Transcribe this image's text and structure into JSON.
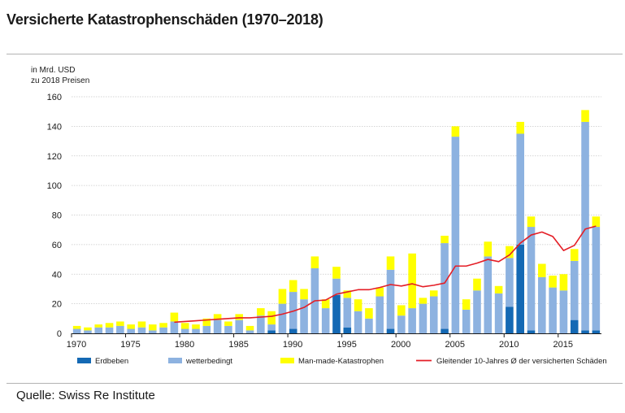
{
  "title": "Versicherte Katastrophenschäden (1970–2018)",
  "unit_label": [
    "in Mrd. USD",
    "zu 2018 Preisen"
  ],
  "source": "Quelle: Swiss Re Institute",
  "colors": {
    "earthquake": "#1469b4",
    "weather": "#8db2e0",
    "manmade": "#ffff00",
    "average": "#e41e26",
    "grid": "#c8c8c8"
  },
  "chart_data": {
    "type": "bar",
    "stacked": true,
    "x": [
      1970,
      1971,
      1972,
      1973,
      1974,
      1975,
      1976,
      1977,
      1978,
      1979,
      1980,
      1981,
      1982,
      1983,
      1984,
      1985,
      1986,
      1987,
      1988,
      1989,
      1990,
      1991,
      1992,
      1993,
      1994,
      1995,
      1996,
      1997,
      1998,
      1999,
      2000,
      2001,
      2002,
      2003,
      2004,
      2005,
      2006,
      2007,
      2008,
      2009,
      2010,
      2011,
      2012,
      2013,
      2014,
      2015,
      2016,
      2017,
      2018
    ],
    "series": [
      {
        "name": "Erdbeben",
        "color_key": "earthquake",
        "values": [
          0,
          0,
          0,
          0,
          0,
          0,
          0,
          0,
          0,
          0,
          0,
          0,
          0,
          0,
          0,
          0,
          0,
          0,
          2,
          0,
          3,
          0,
          0,
          0,
          26,
          4,
          0,
          0,
          0,
          3,
          0,
          0,
          0,
          0,
          3,
          0,
          0,
          0,
          0,
          0,
          18,
          60,
          2,
          0,
          0,
          0,
          9,
          2,
          2
        ]
      },
      {
        "name": "wetterbedingt",
        "color_key": "weather",
        "values": [
          3,
          2,
          4,
          4,
          5,
          3,
          4,
          2,
          4,
          8,
          3,
          3,
          5,
          9,
          5,
          9,
          2,
          12,
          4,
          20,
          25,
          23,
          44,
          17,
          11,
          20,
          15,
          10,
          25,
          40,
          12,
          17,
          20,
          25,
          58,
          133,
          16,
          29,
          52,
          27,
          33,
          75,
          70,
          38,
          31,
          29,
          40,
          141,
          70
        ]
      },
      {
        "name": "Man-made-Katastrophen",
        "color_key": "manmade",
        "values": [
          2,
          2,
          2,
          3,
          3,
          3,
          4,
          4,
          3,
          6,
          4,
          3,
          5,
          4,
          3,
          4,
          3,
          5,
          9,
          10,
          8,
          7,
          8,
          6,
          8,
          5,
          8,
          7,
          6,
          9,
          7,
          37,
          4,
          4,
          5,
          7,
          7,
          8,
          10,
          5,
          8,
          8,
          7,
          9,
          8,
          11,
          8,
          8,
          7
        ]
      }
    ],
    "line": {
      "name": "Gleitender 10-Jahres Ø der versicherten Schäden",
      "color_key": "average",
      "x": [
        1979,
        1980,
        1981,
        1982,
        1983,
        1984,
        1985,
        1986,
        1987,
        1988,
        1989,
        1990,
        1991,
        1992,
        1993,
        1994,
        1995,
        1996,
        1997,
        1998,
        1999,
        2000,
        2001,
        2002,
        2003,
        2004,
        2005,
        2006,
        2007,
        2008,
        2009,
        2010,
        2011,
        2012,
        2013,
        2014,
        2015,
        2016,
        2017,
        2018
      ],
      "values": [
        7.5,
        8,
        8.5,
        9,
        9.5,
        10,
        10.5,
        10.5,
        11,
        11.5,
        13,
        15,
        17.5,
        22,
        22.5,
        26.5,
        28,
        29.5,
        29.5,
        31,
        33,
        32,
        33.5,
        31.5,
        32.5,
        34,
        45.5,
        45.5,
        47.5,
        50,
        48.5,
        53,
        61,
        66.5,
        68.5,
        65.5,
        56,
        59.5,
        70.5,
        72.5
      ]
    },
    "xticks": [
      1970,
      1975,
      1980,
      1985,
      1990,
      1995,
      2000,
      2005,
      2010,
      2015
    ],
    "yticks": [
      0,
      20,
      40,
      60,
      80,
      100,
      120,
      140,
      160
    ],
    "ylim": [
      0,
      160
    ],
    "grid": true,
    "legend": [
      "Erdbeben",
      "wetterbedingt",
      "Man-made-Katastrophen",
      "Gleitender 10-Jahres Ø der versicherten Schäden"
    ],
    "legend_position": "bottom"
  }
}
